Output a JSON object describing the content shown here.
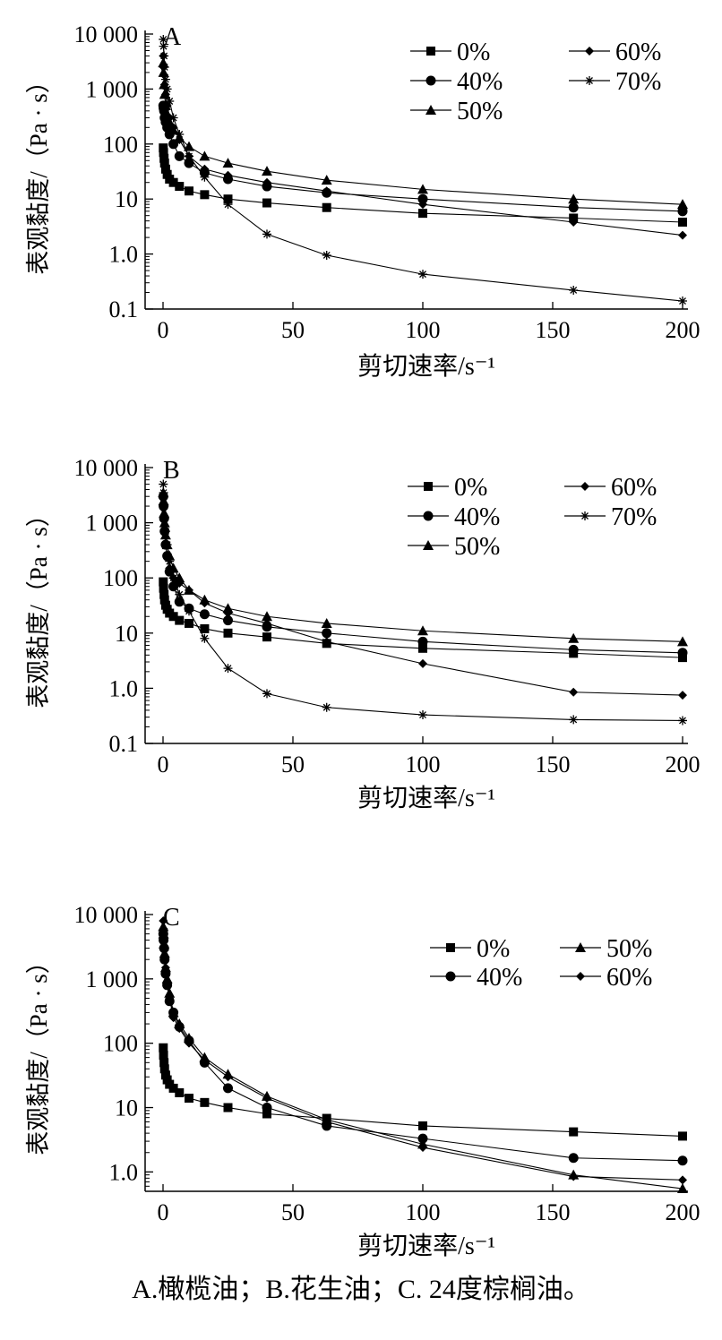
{
  "caption": "A.橄榄油；B.花生油；C. 24度棕榈油。",
  "chart_data": [
    {
      "type": "line",
      "panel_label": "A",
      "xlabel": "剪切速率/s⁻¹",
      "ylabel": "表观黏度/（Pa · s）",
      "xlim": [
        0,
        200
      ],
      "ylim": [
        0.1,
        10000
      ],
      "yscale": "log",
      "xticks": [
        0,
        50,
        100,
        150,
        200
      ],
      "xtick_labels": [
        "0",
        "50",
        "100",
        "150",
        "200"
      ],
      "yticks": [
        0.1,
        1,
        10,
        100,
        1000,
        10000
      ],
      "ytick_labels": [
        "0.1",
        "1.0",
        "10",
        "100",
        "1 000",
        "10 000"
      ],
      "legend_position": "top-right",
      "series": [
        {
          "name": "0%",
          "marker": "square",
          "x": [
            0.1,
            0.2,
            0.4,
            0.6,
            1,
            1.6,
            2.5,
            4,
            6.3,
            10,
            16,
            25,
            40,
            63,
            100,
            158,
            200
          ],
          "y": [
            85,
            70,
            55,
            45,
            35,
            28,
            23,
            20,
            17,
            14,
            12,
            10,
            8.5,
            7,
            5.5,
            4.5,
            3.8
          ]
        },
        {
          "name": "40%",
          "marker": "circle",
          "x": [
            0.1,
            0.2,
            0.4,
            0.6,
            1,
            1.6,
            2.5,
            4,
            6.3,
            10,
            16,
            25,
            40,
            63,
            100,
            158,
            200
          ],
          "y": [
            500,
            450,
            400,
            300,
            250,
            200,
            150,
            100,
            60,
            45,
            30,
            23,
            17,
            13,
            10,
            7,
            6
          ]
        },
        {
          "name": "50%",
          "marker": "triangle",
          "x": [
            0.1,
            0.2,
            0.4,
            0.6,
            1,
            1.6,
            2.5,
            4,
            6.3,
            10,
            16,
            25,
            40,
            63,
            100,
            158,
            200
          ],
          "y": [
            3000,
            2000,
            1200,
            800,
            500,
            350,
            250,
            180,
            130,
            90,
            60,
            45,
            32,
            22,
            15,
            10,
            8
          ]
        },
        {
          "name": "60%",
          "marker": "diamond",
          "x": [
            0.1,
            0.2,
            0.4,
            0.6,
            1,
            1.6,
            2.5,
            4,
            6.3,
            10,
            16,
            25,
            40,
            63,
            100,
            158,
            200
          ],
          "y": [
            4000,
            2500,
            1800,
            1200,
            800,
            500,
            300,
            200,
            120,
            60,
            35,
            27,
            20,
            14,
            8,
            3.8,
            2.2
          ]
        },
        {
          "name": "70%",
          "marker": "star",
          "x": [
            0.1,
            0.2,
            0.4,
            0.6,
            1,
            1.6,
            2.5,
            4,
            6.3,
            10,
            16,
            25,
            40,
            63,
            100,
            158,
            200
          ],
          "y": [
            8000,
            6000,
            4000,
            2500,
            1500,
            1000,
            600,
            300,
            150,
            60,
            25,
            8,
            2.3,
            0.95,
            0.43,
            0.22,
            0.14
          ]
        }
      ]
    },
    {
      "type": "line",
      "panel_label": "B",
      "xlabel": "剪切速率/s⁻¹",
      "ylabel": "表观黏度/（Pa · s）",
      "xlim": [
        0,
        200
      ],
      "ylim": [
        0.1,
        10000
      ],
      "yscale": "log",
      "xticks": [
        0,
        50,
        100,
        150,
        200
      ],
      "xtick_labels": [
        "0",
        "50",
        "100",
        "150",
        "200"
      ],
      "yticks": [
        0.1,
        1,
        10,
        100,
        1000,
        10000
      ],
      "ytick_labels": [
        "0.1",
        "1.0",
        "10",
        "100",
        "1 000",
        "10 000"
      ],
      "legend_position": "top-right",
      "series": [
        {
          "name": "0%",
          "marker": "square",
          "x": [
            0.1,
            0.2,
            0.4,
            0.6,
            1,
            1.6,
            2.5,
            4,
            6.3,
            10,
            16,
            25,
            40,
            63,
            100,
            158,
            200
          ],
          "y": [
            85,
            65,
            50,
            40,
            32,
            27,
            23,
            20,
            17,
            15,
            12,
            10,
            8.5,
            6.5,
            5.3,
            4.3,
            3.6
          ]
        },
        {
          "name": "40%",
          "marker": "circle",
          "x": [
            0.1,
            0.2,
            0.4,
            0.6,
            1,
            1.6,
            2.5,
            4,
            6.3,
            10,
            16,
            25,
            40,
            63,
            100,
            158,
            200
          ],
          "y": [
            3000,
            2000,
            1200,
            700,
            400,
            250,
            130,
            70,
            37,
            28,
            22,
            17,
            13,
            10,
            7,
            5,
            4.4
          ]
        },
        {
          "name": "50%",
          "marker": "triangle",
          "x": [
            0.1,
            0.2,
            0.4,
            0.6,
            1,
            1.6,
            2.5,
            4,
            6.3,
            10,
            16,
            25,
            40,
            63,
            100,
            158,
            200
          ],
          "y": [
            3500,
            2500,
            1500,
            1000,
            600,
            400,
            250,
            150,
            100,
            60,
            40,
            28,
            20,
            15,
            11,
            8,
            7
          ]
        },
        {
          "name": "60%",
          "marker": "diamond",
          "x": [
            0.1,
            0.2,
            0.4,
            0.6,
            1,
            1.6,
            2.5,
            4,
            6.3,
            10,
            16,
            25,
            40,
            63,
            100,
            158,
            200
          ],
          "y": [
            2800,
            1800,
            1100,
            700,
            400,
            250,
            150,
            100,
            80,
            60,
            35,
            23,
            15,
            7,
            2.8,
            0.85,
            0.75
          ]
        },
        {
          "name": "70%",
          "marker": "star",
          "x": [
            0.1,
            0.2,
            0.4,
            0.6,
            1,
            1.6,
            2.5,
            4,
            6.3,
            10,
            16,
            25,
            40,
            63,
            100,
            158,
            200
          ],
          "y": [
            5000,
            3500,
            2000,
            1200,
            700,
            400,
            200,
            100,
            50,
            25,
            8,
            2.3,
            0.8,
            0.45,
            0.33,
            0.27,
            0.26
          ]
        }
      ]
    },
    {
      "type": "line",
      "panel_label": "C",
      "xlabel": "剪切速率/s⁻¹",
      "ylabel": "表观黏度/（Pa · s）",
      "xlim": [
        0,
        200
      ],
      "ylim": [
        0.5,
        10000
      ],
      "yscale": "log",
      "xticks": [
        0,
        50,
        100,
        150,
        200
      ],
      "xtick_labels": [
        "0",
        "50",
        "100",
        "150",
        "200"
      ],
      "yticks": [
        1,
        10,
        100,
        1000,
        10000
      ],
      "ytick_labels": [
        "1.0",
        "10",
        "100",
        "1 000",
        "10 000"
      ],
      "legend_position": "top-right",
      "series": [
        {
          "name": "0%",
          "marker": "square",
          "x": [
            0.1,
            0.2,
            0.4,
            0.6,
            1,
            1.6,
            2.5,
            4,
            6.3,
            10,
            16,
            25,
            40,
            63,
            100,
            158,
            200
          ],
          "y": [
            85,
            65,
            50,
            40,
            32,
            27,
            23,
            20,
            17,
            14,
            12,
            10,
            8,
            6.8,
            5.2,
            4.2,
            3.6
          ]
        },
        {
          "name": "40%",
          "marker": "circle",
          "x": [
            0.1,
            0.2,
            0.4,
            0.6,
            1,
            1.6,
            2.5,
            4,
            6.3,
            10,
            16,
            25,
            40,
            63,
            100,
            158,
            200
          ],
          "y": [
            5000,
            4000,
            3000,
            2000,
            1200,
            800,
            450,
            300,
            180,
            110,
            50,
            20,
            10,
            5.2,
            3.3,
            1.65,
            1.5
          ]
        },
        {
          "name": "50%",
          "marker": "triangle",
          "x": [
            0.1,
            0.2,
            0.4,
            0.6,
            1,
            1.6,
            2.5,
            4,
            6.3,
            10,
            16,
            25,
            40,
            63,
            100,
            158,
            200
          ],
          "y": [
            6500,
            5000,
            3500,
            2500,
            1500,
            1000,
            600,
            300,
            200,
            120,
            60,
            33,
            15,
            6.5,
            2.7,
            0.9,
            0.55
          ]
        },
        {
          "name": "60%",
          "marker": "diamond",
          "x": [
            0.1,
            0.2,
            0.4,
            0.6,
            1,
            1.6,
            2.5,
            4,
            6.3,
            10,
            16,
            25,
            40,
            63,
            100,
            158,
            200
          ],
          "y": [
            8000,
            6000,
            4000,
            2800,
            1500,
            900,
            500,
            250,
            170,
            100,
            55,
            30,
            14,
            6,
            2.4,
            0.85,
            0.75
          ]
        }
      ]
    }
  ]
}
